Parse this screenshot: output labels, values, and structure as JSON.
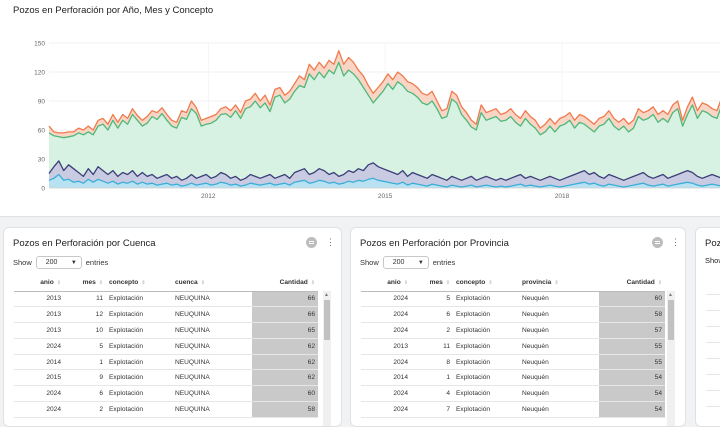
{
  "colors": {
    "total_line": "#f07a4c",
    "total_fill": "#f9d5c6",
    "explotacion_line": "#4fb87a",
    "explotacion_fill": "#d7f1e2",
    "exploracion_line": "#3b3f78",
    "exploracion_fill": "#c9cbe2",
    "otro_line": "#3aaed8",
    "otro_fill": "#b8e2f2",
    "table_bar": "#c9c9c9"
  },
  "chart": {
    "title": "Pozos en Perforación por Año, Mes y Concepto"
  },
  "chart_data": {
    "type": "area",
    "title": "Pozos en Perforación por Año, Mes y Concepto",
    "x_range": [
      2009.3,
      2020.9
    ],
    "ylim": [
      0,
      150
    ],
    "yticks": [
      0,
      30,
      60,
      90,
      120,
      150
    ],
    "xticks": [
      2012,
      2015,
      2018
    ],
    "grid": true,
    "x_step": 0.0833,
    "x_start": 2009.3,
    "series": [
      {
        "values": [
          64,
          58,
          57,
          57,
          58,
          58,
          62,
          60,
          64,
          60,
          70,
          72,
          66,
          76,
          68,
          76,
          72,
          82,
          75,
          70,
          74,
          80,
          78,
          83,
          76,
          70,
          68,
          80,
          78,
          90,
          83,
          70,
          72,
          74,
          76,
          82,
          84,
          80,
          86,
          78,
          90,
          92,
          98,
          90,
          96,
          86,
          102,
          104,
          96,
          100,
          108,
          116,
          112,
          128,
          122,
          130,
          124,
          132,
          128,
          142,
          128,
          135,
          130,
          122,
          116,
          106,
          98,
          104,
          110,
          118,
          112,
          120,
          116,
          110,
          108,
          104,
          98,
          96,
          100,
          90,
          80,
          82,
          100,
          96,
          84,
          78,
          70,
          66,
          86,
          78,
          80,
          82,
          76,
          78,
          82,
          76,
          72,
          80,
          74,
          70,
          62,
          66,
          72,
          66,
          72,
          74,
          78,
          70,
          76,
          74,
          70,
          66,
          72,
          74,
          80,
          72,
          68,
          72,
          66,
          70,
          82,
          78,
          80,
          84,
          76,
          80,
          76,
          86,
          90,
          70,
          84,
          94,
          80,
          88,
          86,
          82,
          80,
          94,
          96,
          90,
          88
        ]
      },
      {
        "values": [
          57,
          54,
          53,
          52,
          53,
          54,
          57,
          55,
          58,
          55,
          64,
          66,
          60,
          70,
          62,
          70,
          66,
          76,
          70,
          64,
          67,
          74,
          71,
          77,
          70,
          64,
          62,
          73,
          71,
          82,
          77,
          64,
          66,
          67,
          70,
          76,
          77,
          73,
          80,
          72,
          82,
          84,
          90,
          83,
          88,
          79,
          94,
          96,
          88,
          92,
          100,
          106,
          104,
          118,
          112,
          120,
          114,
          122,
          118,
          130,
          116,
          122,
          118,
          112,
          104,
          96,
          88,
          94,
          100,
          108,
          102,
          110,
          106,
          100,
          98,
          94,
          88,
          86,
          90,
          82,
          72,
          74,
          92,
          88,
          76,
          70,
          63,
          60,
          78,
          70,
          72,
          74,
          69,
          70,
          74,
          68,
          64,
          72,
          66,
          62,
          55,
          58,
          64,
          58,
          64,
          66,
          70,
          62,
          68,
          66,
          62,
          58,
          64,
          66,
          72,
          64,
          60,
          64,
          58,
          62,
          74,
          70,
          72,
          76,
          68,
          72,
          68,
          78,
          82,
          64,
          76,
          86,
          72,
          80,
          78,
          74,
          72,
          86,
          88,
          82,
          80
        ]
      },
      {
        "values": [
          15,
          22,
          28,
          18,
          24,
          20,
          16,
          12,
          20,
          14,
          22,
          18,
          14,
          18,
          12,
          16,
          14,
          18,
          12,
          16,
          12,
          14,
          10,
          12,
          14,
          10,
          12,
          8,
          10,
          14,
          10,
          12,
          14,
          10,
          12,
          16,
          14,
          10,
          12,
          8,
          10,
          14,
          12,
          10,
          12,
          14,
          10,
          12,
          14,
          10,
          16,
          18,
          20,
          14,
          16,
          20,
          18,
          14,
          16,
          12,
          14,
          18,
          16,
          20,
          18,
          24,
          26,
          22,
          20,
          18,
          16,
          14,
          18,
          12,
          16,
          14,
          12,
          10,
          14,
          12,
          10,
          8,
          12,
          10,
          8,
          10,
          12,
          8,
          10,
          12,
          10,
          8,
          10,
          8,
          10,
          12,
          14,
          10,
          12,
          10,
          8,
          10,
          12,
          10,
          8,
          10,
          12,
          14,
          16,
          18,
          14,
          16,
          12,
          10,
          14,
          12,
          10,
          8,
          10,
          12,
          14,
          16,
          12,
          10,
          12,
          14,
          10,
          12,
          14,
          16,
          18,
          16,
          12,
          10,
          12,
          14,
          12,
          10,
          12,
          14,
          12
        ]
      },
      {
        "values": [
          8,
          10,
          14,
          8,
          9,
          6,
          7,
          5,
          9,
          6,
          9,
          7,
          5,
          7,
          4,
          6,
          5,
          7,
          4,
          6,
          4,
          5,
          3,
          4,
          5,
          3,
          4,
          2,
          3,
          5,
          3,
          4,
          5,
          3,
          4,
          6,
          5,
          3,
          4,
          2,
          3,
          5,
          4,
          3,
          4,
          5,
          3,
          4,
          5,
          3,
          6,
          7,
          8,
          5,
          6,
          8,
          7,
          5,
          6,
          4,
          5,
          7,
          6,
          8,
          7,
          9,
          10,
          8,
          7,
          6,
          5,
          4,
          6,
          3,
          5,
          4,
          3,
          2,
          4,
          3,
          2,
          1,
          3,
          2,
          1,
          2,
          3,
          1,
          2,
          3,
          2,
          1,
          2,
          1,
          2,
          3,
          4,
          2,
          3,
          2,
          1,
          2,
          3,
          2,
          1,
          2,
          3,
          4,
          5,
          6,
          4,
          5,
          3,
          2,
          4,
          3,
          2,
          1,
          2,
          3,
          4,
          5,
          3,
          2,
          3,
          4,
          2,
          3,
          4,
          5,
          6,
          5,
          3,
          2,
          3,
          4,
          3,
          2,
          3,
          4,
          3
        ]
      }
    ]
  },
  "table_cuenca": {
    "title": "Pozos en Perforación por Cuenca",
    "show_label": "Show",
    "entries_value": "200",
    "entries_label": "entries",
    "columns": [
      "anio",
      "mes",
      "concepto",
      "cuenca",
      "Cantidad"
    ],
    "rows": [
      [
        "2013",
        "11",
        "Explotación",
        "NEUQUINA",
        "66"
      ],
      [
        "2013",
        "12",
        "Explotación",
        "NEUQUINA",
        "66"
      ],
      [
        "2013",
        "10",
        "Explotación",
        "NEUQUINA",
        "65"
      ],
      [
        "2024",
        "5",
        "Explotación",
        "NEUQUINA",
        "62"
      ],
      [
        "2014",
        "1",
        "Explotación",
        "NEUQUINA",
        "62"
      ],
      [
        "2015",
        "9",
        "Explotación",
        "NEUQUINA",
        "62"
      ],
      [
        "2024",
        "6",
        "Explotación",
        "NEUQUINA",
        "60"
      ],
      [
        "2024",
        "2",
        "Explotación",
        "NEUQUINA",
        "58"
      ]
    ]
  },
  "table_provincia": {
    "title": "Pozos en Perforación por Provincia",
    "show_label": "Show",
    "entries_value": "200",
    "entries_label": "entries",
    "columns": [
      "anio",
      "mes",
      "concepto",
      "provincia",
      "Cantidad"
    ],
    "rows": [
      [
        "2024",
        "5",
        "Explotación",
        "Neuquén",
        "60"
      ],
      [
        "2024",
        "6",
        "Explotación",
        "Neuquén",
        "58"
      ],
      [
        "2024",
        "2",
        "Explotación",
        "Neuquén",
        "57"
      ],
      [
        "2013",
        "11",
        "Explotación",
        "Neuquén",
        "55"
      ],
      [
        "2024",
        "8",
        "Explotación",
        "Neuquén",
        "55"
      ],
      [
        "2014",
        "1",
        "Explotación",
        "Neuquén",
        "54"
      ],
      [
        "2024",
        "4",
        "Explotación",
        "Neuquén",
        "54"
      ],
      [
        "2024",
        "7",
        "Explotación",
        "Neuquén",
        "54"
      ]
    ]
  },
  "third_card": {
    "title": "Poz",
    "show_label": "Show",
    "first_column": "a"
  }
}
